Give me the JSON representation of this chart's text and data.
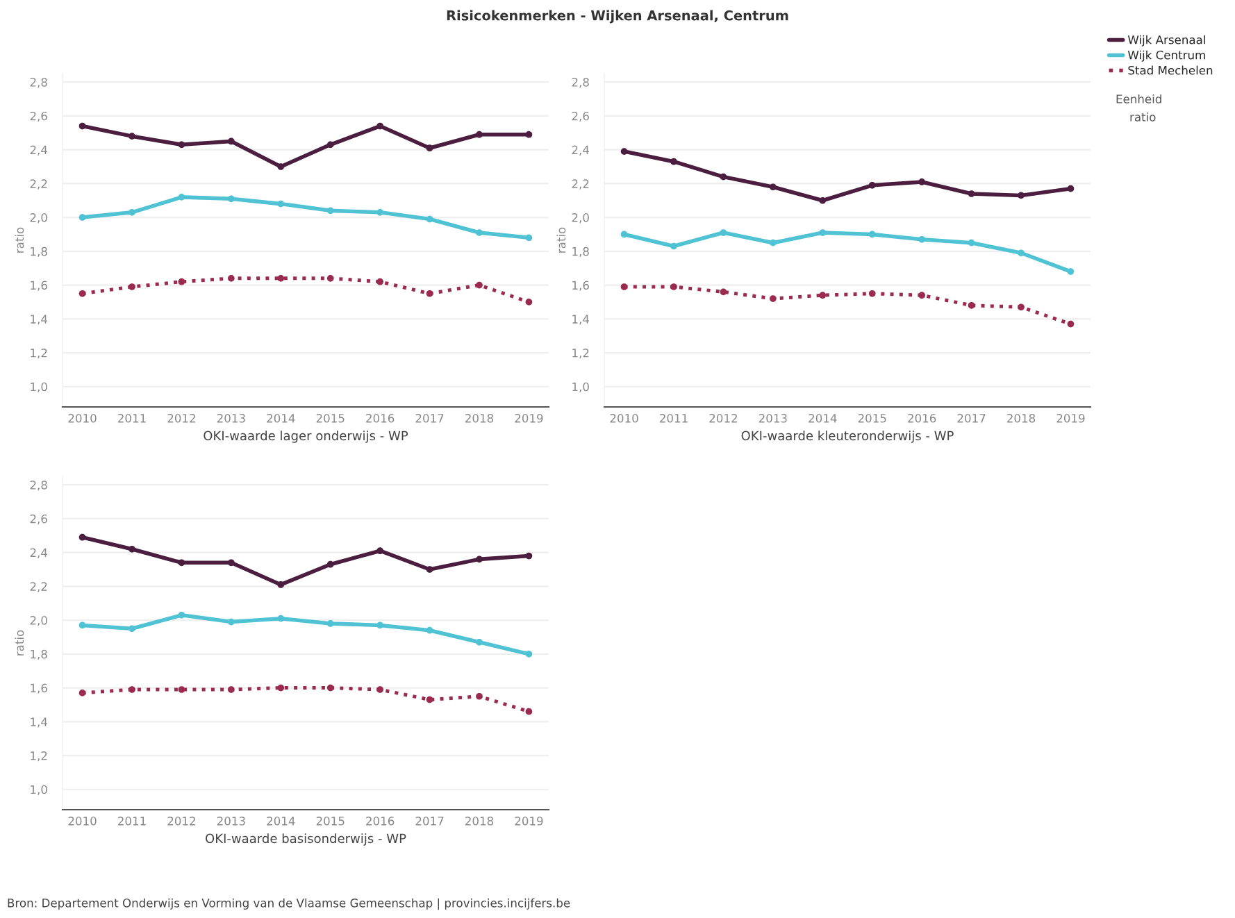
{
  "chart_data": [
    {
      "type": "line",
      "title": "Risicokenmerken - Wijken Arsenaal, Centrum",
      "xlabel": "OKI-waarde lager onderwijs - WP",
      "ylabel": "ratio",
      "categories": [
        "2010",
        "2011",
        "2012",
        "2013",
        "2014",
        "2015",
        "2016",
        "2017",
        "2018",
        "2019"
      ],
      "series": [
        {
          "name": "Wijk Arsenaal",
          "color": "#4b1d3f",
          "line_style": "solid",
          "values": [
            2.54,
            2.48,
            2.43,
            2.45,
            2.3,
            2.43,
            2.54,
            2.41,
            2.49,
            2.49
          ]
        },
        {
          "name": "Wijk Centrum",
          "color": "#4fc3d4",
          "line_style": "solid",
          "values": [
            2.0,
            2.03,
            2.12,
            2.11,
            2.08,
            2.04,
            2.03,
            1.99,
            1.91,
            1.88
          ]
        },
        {
          "name": "Stad Mechelen",
          "color": "#9b2a4f",
          "line_style": "dotted",
          "values": [
            1.55,
            1.59,
            1.62,
            1.64,
            1.64,
            1.64,
            1.62,
            1.55,
            1.6,
            1.5
          ]
        }
      ],
      "ylim": [
        0.88,
        2.85
      ],
      "yticks": [
        {
          "value": 1.0,
          "label": "1,0"
        },
        {
          "value": 1.2,
          "label": "1,2"
        },
        {
          "value": 1.4,
          "label": "1,4"
        },
        {
          "value": 1.6,
          "label": "1,6"
        },
        {
          "value": 1.8,
          "label": "1,8"
        },
        {
          "value": 2.0,
          "label": "2,0"
        },
        {
          "value": 2.2,
          "label": "2,2"
        },
        {
          "value": 2.4,
          "label": "2,4"
        },
        {
          "value": 2.6,
          "label": "2,6"
        },
        {
          "value": 2.8,
          "label": "2,8"
        }
      ],
      "grid": "y",
      "marker": "circle",
      "legend": "top right",
      "annotations": [
        "Eenheid",
        "ratio"
      ]
    },
    {
      "type": "line",
      "xlabel": "OKI-waarde kleuteronderwijs - WP",
      "ylabel": "ratio",
      "categories": [
        "2010",
        "2011",
        "2012",
        "2013",
        "2014",
        "2015",
        "2016",
        "2017",
        "2018",
        "2019"
      ],
      "series": [
        {
          "color": "#4b1d3f",
          "line_style": "solid",
          "values": [
            2.39,
            2.33,
            2.24,
            2.18,
            2.1,
            2.19,
            2.21,
            2.14,
            2.13,
            2.17
          ]
        },
        {
          "color": "#4fc3d4",
          "line_style": "solid",
          "values": [
            1.9,
            1.83,
            1.91,
            1.85,
            1.91,
            1.9,
            1.87,
            1.85,
            1.79,
            1.68
          ]
        },
        {
          "color": "#9b2a4f",
          "line_style": "dotted",
          "values": [
            1.59,
            1.59,
            1.56,
            1.52,
            1.54,
            1.55,
            1.54,
            1.48,
            1.47,
            1.37
          ]
        }
      ],
      "ylim": [
        0.88,
        2.85
      ],
      "yticks": [
        {
          "value": 1.0,
          "label": "1,0"
        },
        {
          "value": 1.2,
          "label": "1,2"
        },
        {
          "value": 1.4,
          "label": "1,4"
        },
        {
          "value": 1.6,
          "label": "1,6"
        },
        {
          "value": 1.8,
          "label": "1,8"
        },
        {
          "value": 2.0,
          "label": "2,0"
        },
        {
          "value": 2.2,
          "label": "2,2"
        },
        {
          "value": 2.4,
          "label": "2,4"
        },
        {
          "value": 2.6,
          "label": "2,6"
        },
        {
          "value": 2.8,
          "label": "2,8"
        }
      ],
      "grid": "y",
      "marker": "circle"
    },
    {
      "type": "line",
      "xlabel": "OKI-waarde basisonderwijs - WP",
      "ylabel": "ratio",
      "categories": [
        "2010",
        "2011",
        "2012",
        "2013",
        "2014",
        "2015",
        "2016",
        "2017",
        "2018",
        "2019"
      ],
      "series": [
        {
          "color": "#4b1d3f",
          "line_style": "solid",
          "values": [
            2.49,
            2.42,
            2.34,
            2.34,
            2.21,
            2.33,
            2.41,
            2.3,
            2.36,
            2.38
          ]
        },
        {
          "color": "#4fc3d4",
          "line_style": "solid",
          "values": [
            1.97,
            1.95,
            2.03,
            1.99,
            2.01,
            1.98,
            1.97,
            1.94,
            1.87,
            1.8
          ]
        },
        {
          "color": "#9b2a4f",
          "line_style": "dotted",
          "values": [
            1.57,
            1.59,
            1.59,
            1.59,
            1.6,
            1.6,
            1.59,
            1.53,
            1.55,
            1.46
          ]
        }
      ],
      "ylim": [
        0.88,
        2.85
      ],
      "yticks": [
        {
          "value": 1.0,
          "label": "1,0"
        },
        {
          "value": 1.2,
          "label": "1,2"
        },
        {
          "value": 1.4,
          "label": "1,4"
        },
        {
          "value": 1.6,
          "label": "1,6"
        },
        {
          "value": 1.8,
          "label": "1,8"
        },
        {
          "value": 2.0,
          "label": "2,0"
        },
        {
          "value": 2.2,
          "label": "2,2"
        },
        {
          "value": 2.4,
          "label": "2,4"
        },
        {
          "value": 2.6,
          "label": "2,6"
        },
        {
          "value": 2.8,
          "label": "2,8"
        }
      ],
      "grid": "y",
      "marker": "circle",
      "annotations": [
        "Bron: Departement Onderwijs en Vorming van de Vlaamse Gemeenschap | provincies.incijfers.be"
      ]
    }
  ]
}
